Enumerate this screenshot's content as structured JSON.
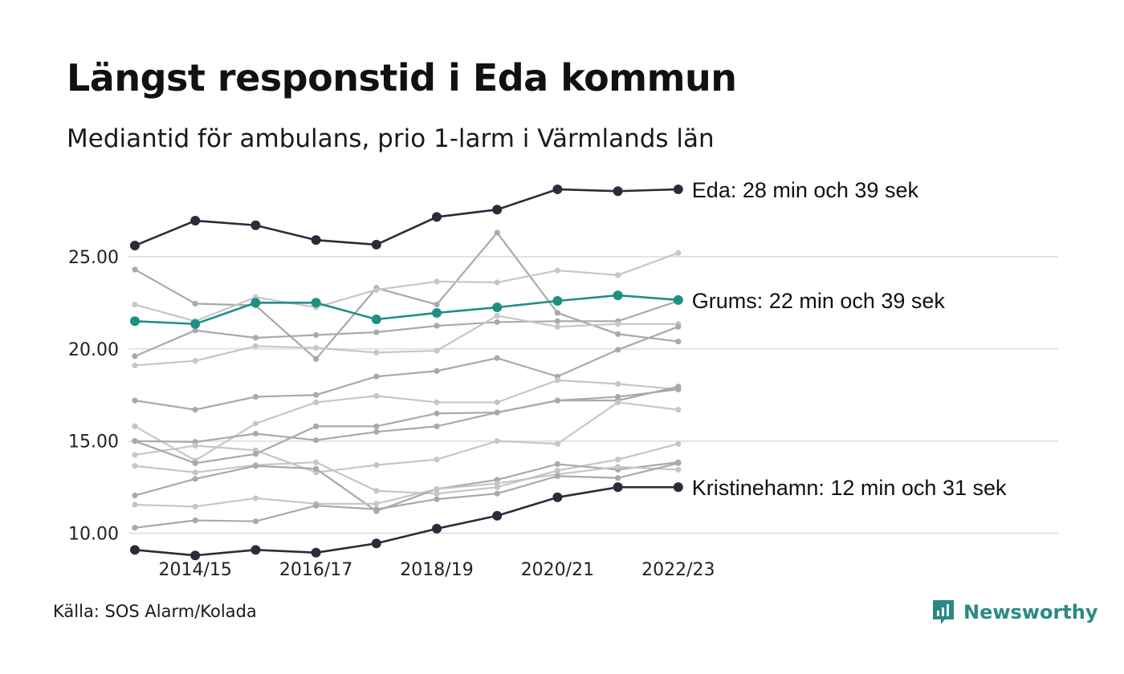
{
  "title": "Längst responstid i Eda kommun",
  "subtitle": "Mediantid för ambulans, prio 1-larm i Värmlands län",
  "source": "Källa: SOS Alarm/Kolada",
  "brand": {
    "name": "Newsworthy",
    "icon": "newsworthy-logo-icon",
    "color": "#2a8a82"
  },
  "colors": {
    "highlight_dark": "#2b2b3a",
    "highlight_teal": "#1f8f84",
    "context_series": [
      "#a9a9a9",
      "#c6c6c6"
    ],
    "grid": "#e3e3e3"
  },
  "chart_data": {
    "type": "line",
    "x": [
      "2013/14",
      "2014/15",
      "2015/16",
      "2016/17",
      "2017/18",
      "2018/19",
      "2019/20",
      "2020/21",
      "2021/22",
      "2022/23"
    ],
    "x_tick_labels": [
      "2014/15",
      "2016/17",
      "2018/19",
      "2020/21",
      "2022/23"
    ],
    "y_ticks": [
      10,
      15,
      20,
      25
    ],
    "y_tick_labels": [
      "10.00",
      "15.00",
      "20.00",
      "25.00"
    ],
    "ylim": [
      8.2,
      29.3
    ],
    "grid": true,
    "highlighted": [
      {
        "name": "Eda",
        "label": "Eda: 28 min och 39 sek",
        "color": "#2b2b3a",
        "values": [
          25.6,
          26.95,
          26.7,
          25.9,
          25.65,
          27.15,
          27.55,
          28.65,
          28.55,
          28.65
        ]
      },
      {
        "name": "Grums",
        "label": "Grums: 22 min och 39 sek",
        "color": "#1f8f84",
        "values": [
          21.5,
          21.35,
          22.5,
          22.5,
          21.6,
          21.95,
          22.25,
          22.6,
          22.9,
          22.65
        ]
      },
      {
        "name": "Kristinehamn",
        "label": "Kristinehamn: 12 min och 31 sek",
        "color": "#2b2b3a",
        "values": [
          9.1,
          8.8,
          9.1,
          8.95,
          9.45,
          10.25,
          10.95,
          11.95,
          12.5,
          12.5
        ]
      }
    ],
    "context_series": [
      {
        "values": [
          24.3,
          22.45,
          22.35,
          19.45,
          23.3,
          22.4,
          26.3,
          21.95,
          20.8,
          20.4
        ]
      },
      {
        "values": [
          22.4,
          21.5,
          22.8,
          22.25,
          23.2,
          23.65,
          23.6,
          24.25,
          24.0,
          25.2
        ]
      },
      {
        "values": [
          19.6,
          21.0,
          20.6,
          20.75,
          20.9,
          21.25,
          21.45,
          21.5,
          21.5,
          22.6
        ]
      },
      {
        "values": [
          19.1,
          19.35,
          20.15,
          20.05,
          19.8,
          19.9,
          21.8,
          21.2,
          21.35,
          21.35
        ]
      },
      {
        "values": [
          17.2,
          16.7,
          17.4,
          17.5,
          18.5,
          18.8,
          19.5,
          18.5,
          19.95,
          21.2
        ]
      },
      {
        "values": [
          15.8,
          13.95,
          15.95,
          17.1,
          17.45,
          17.1,
          17.1,
          18.3,
          18.1,
          17.8
        ]
      },
      {
        "values": [
          15.0,
          14.95,
          15.4,
          15.05,
          15.5,
          15.8,
          16.55,
          17.2,
          17.2,
          17.95
        ]
      },
      {
        "values": [
          14.25,
          14.75,
          14.5,
          13.3,
          13.7,
          14.0,
          15.0,
          14.85,
          17.1,
          16.7
        ]
      },
      {
        "values": [
          15.0,
          13.8,
          14.3,
          15.8,
          15.8,
          16.5,
          16.55,
          17.2,
          17.4,
          17.8
        ]
      },
      {
        "values": [
          13.65,
          13.3,
          13.7,
          13.85,
          12.3,
          12.15,
          12.5,
          13.4,
          14.0,
          14.85
        ]
      },
      {
        "values": [
          12.05,
          12.95,
          13.65,
          13.5,
          11.2,
          12.4,
          12.9,
          13.75,
          13.45,
          13.85
        ]
      },
      {
        "values": [
          11.55,
          11.45,
          11.9,
          11.6,
          11.6,
          12.4,
          12.7,
          13.2,
          13.6,
          13.45
        ]
      },
      {
        "values": [
          10.3,
          10.7,
          10.65,
          11.5,
          11.3,
          11.85,
          12.15,
          13.1,
          13.0,
          13.8
        ]
      }
    ]
  }
}
